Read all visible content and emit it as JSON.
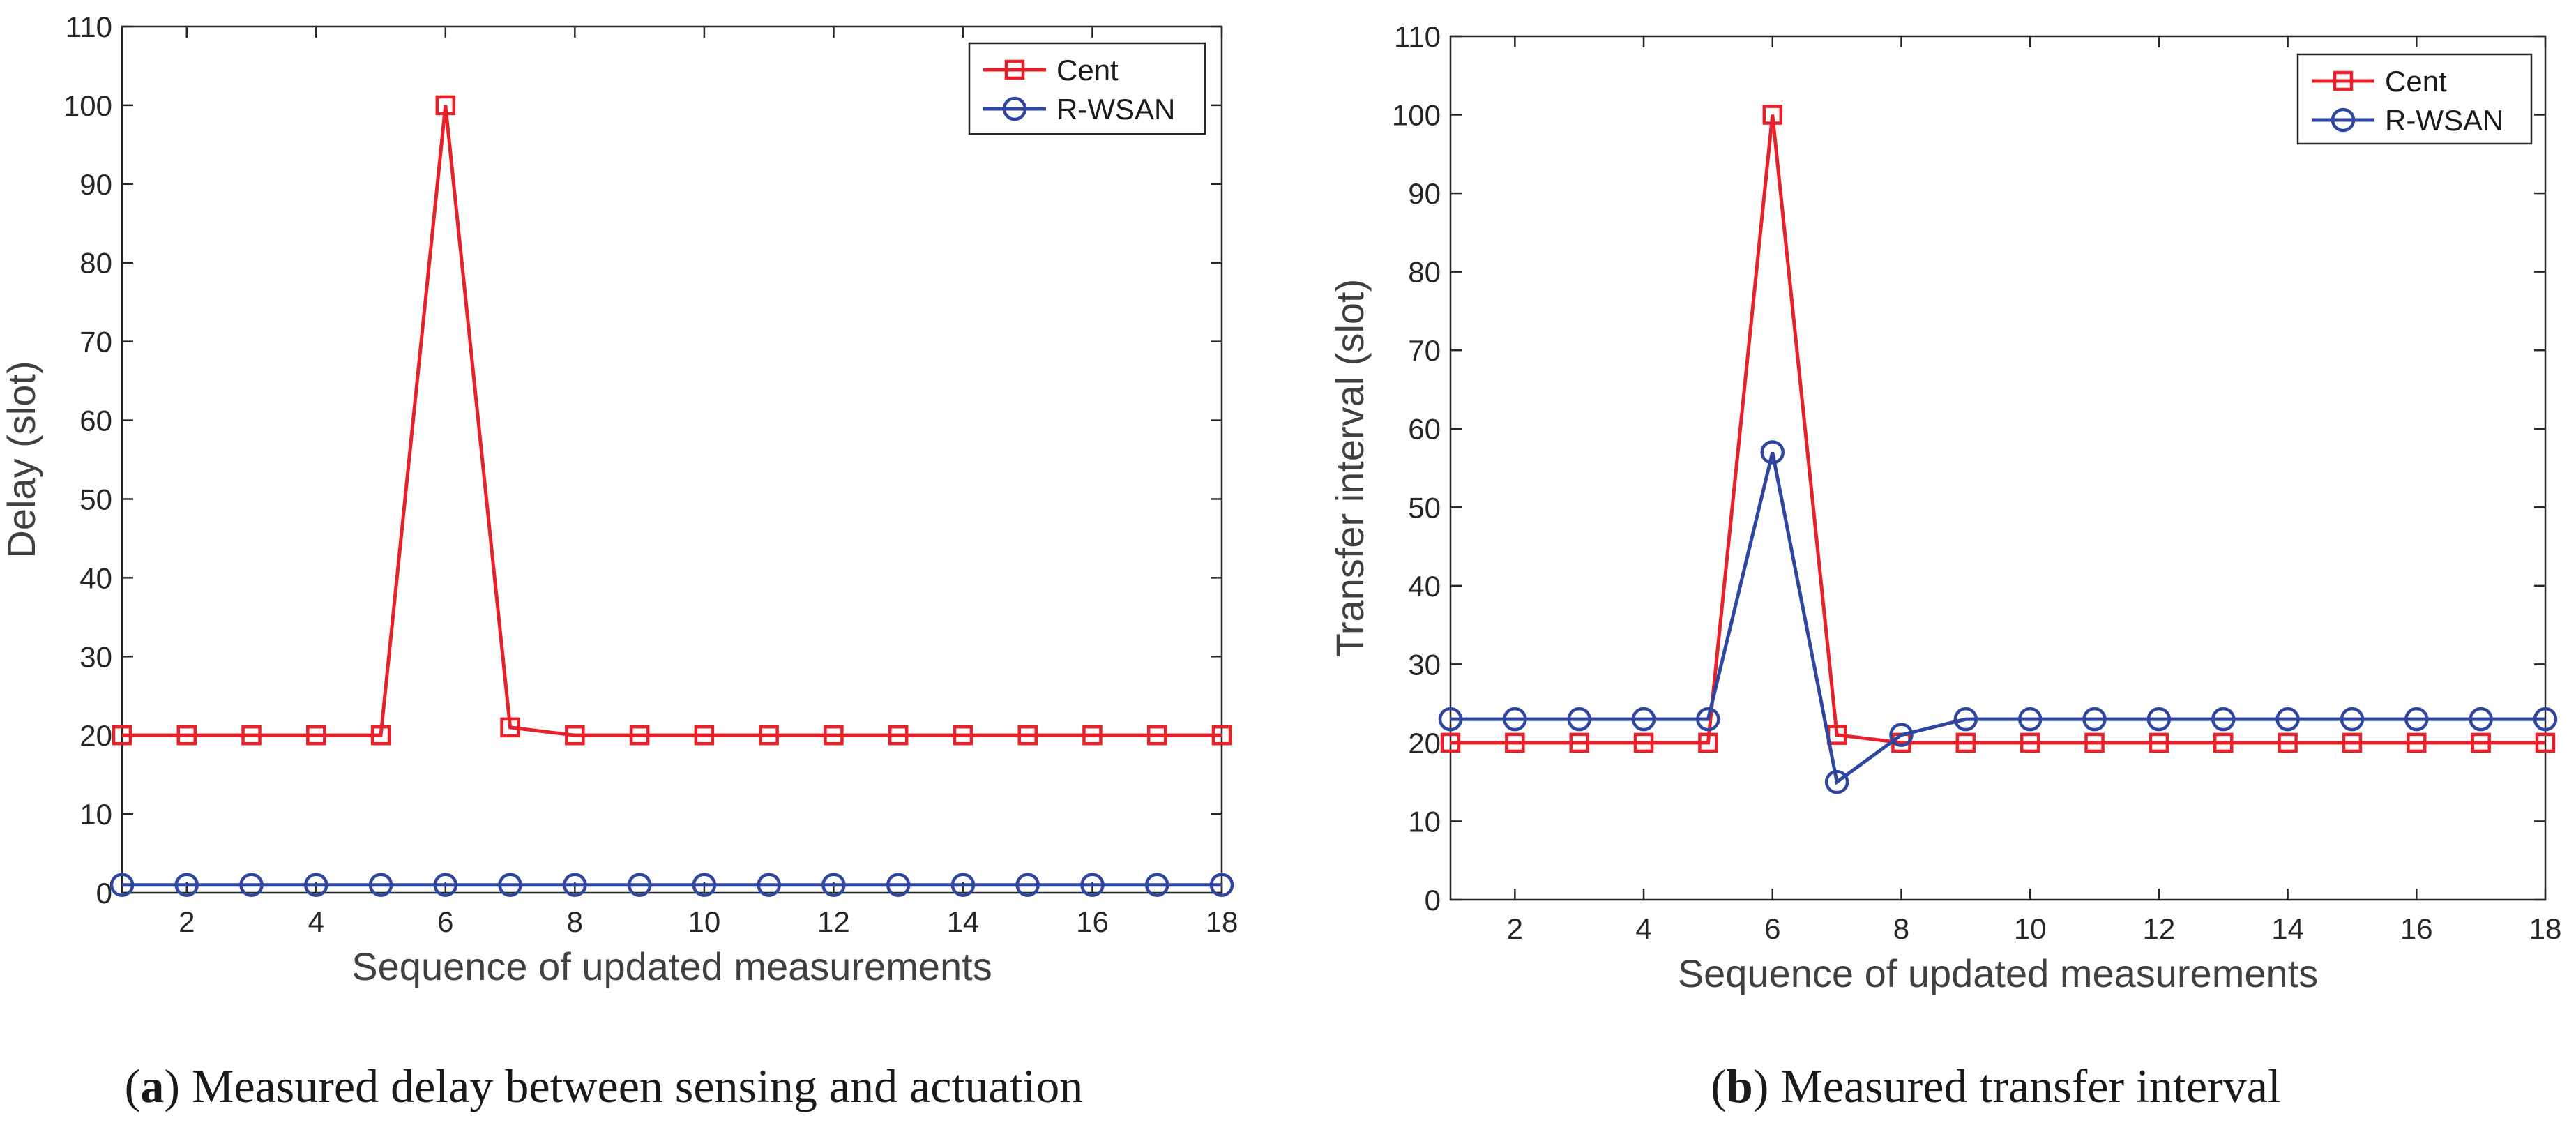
{
  "colors": {
    "cent": "#e8202a",
    "rwsan": "#2e46a0",
    "axis": "#262626",
    "tick_text": "#262626",
    "label_text": "#404040"
  },
  "chart_data": [
    {
      "type": "line",
      "title": "",
      "xlabel": "Sequence of updated measurements",
      "ylabel": "Delay (slot)",
      "xlim": [
        1,
        18
      ],
      "ylim": [
        0,
        110
      ],
      "xticks": [
        2,
        4,
        6,
        8,
        10,
        12,
        14,
        16,
        18
      ],
      "xtick_labels": [
        "2",
        "4",
        "6",
        "8",
        "10",
        "12",
        "14",
        "16",
        "18"
      ],
      "yticks": [
        0,
        10,
        20,
        30,
        40,
        50,
        60,
        70,
        80,
        90,
        100,
        110
      ],
      "ytick_labels": [
        "0",
        "10",
        "20",
        "30",
        "40",
        "50",
        "60",
        "70",
        "80",
        "90",
        "100",
        "110"
      ],
      "grid": false,
      "legend_position": "top-right",
      "x": [
        1,
        2,
        3,
        4,
        5,
        6,
        7,
        8,
        9,
        10,
        11,
        12,
        13,
        14,
        15,
        16,
        17,
        18
      ],
      "series": [
        {
          "name": "Cent",
          "marker": "square",
          "values": [
            20,
            20,
            20,
            20,
            20,
            100,
            21,
            20,
            20,
            20,
            20,
            20,
            20,
            20,
            20,
            20,
            20,
            20
          ]
        },
        {
          "name": "R-WSAN",
          "marker": "circle",
          "values": [
            1,
            1,
            1,
            1,
            1,
            1,
            1,
            1,
            1,
            1,
            1,
            1,
            1,
            1,
            1,
            1,
            1,
            1
          ]
        }
      ],
      "caption": {
        "letter": "a",
        "text": "Measured delay between sensing and actuation"
      }
    },
    {
      "type": "line",
      "title": "",
      "xlabel": "Sequence of updated measurements",
      "ylabel": "Transfer interval (slot)",
      "xlim": [
        1,
        18
      ],
      "ylim": [
        0,
        110
      ],
      "xticks": [
        2,
        4,
        6,
        8,
        10,
        12,
        14,
        16,
        18
      ],
      "xtick_labels": [
        "2",
        "4",
        "6",
        "8",
        "10",
        "12",
        "14",
        "16",
        "18"
      ],
      "yticks": [
        0,
        10,
        20,
        30,
        40,
        50,
        60,
        70,
        80,
        90,
        100,
        110
      ],
      "ytick_labels": [
        "0",
        "10",
        "20",
        "30",
        "40",
        "50",
        "60",
        "70",
        "80",
        "90",
        "100",
        "110"
      ],
      "grid": false,
      "legend_position": "top-right",
      "x": [
        1,
        2,
        3,
        4,
        5,
        6,
        7,
        8,
        9,
        10,
        11,
        12,
        13,
        14,
        15,
        16,
        17,
        18
      ],
      "series": [
        {
          "name": "Cent",
          "marker": "square",
          "values": [
            20,
            20,
            20,
            20,
            20,
            100,
            21,
            20,
            20,
            20,
            20,
            20,
            20,
            20,
            20,
            20,
            20,
            20
          ]
        },
        {
          "name": "R-WSAN",
          "marker": "circle",
          "values": [
            23,
            23,
            23,
            23,
            23,
            57,
            15,
            21,
            23,
            23,
            23,
            23,
            23,
            23,
            23,
            23,
            23,
            23
          ]
        }
      ],
      "caption": {
        "letter": "b",
        "text": "Measured transfer interval"
      }
    }
  ]
}
